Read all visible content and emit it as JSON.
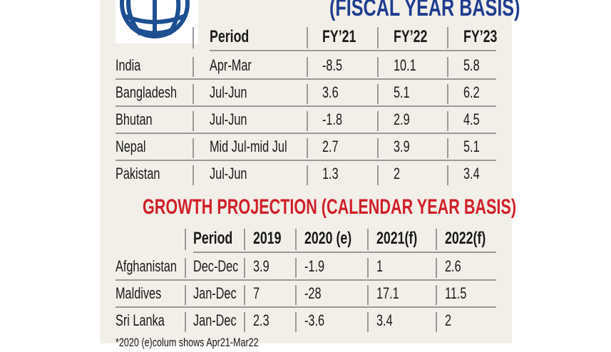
{
  "colors": {
    "fiscal_heading": "#1f3d8f",
    "calendar_heading": "#d0202a",
    "panel": "#f2efe9",
    "logo": "#1d4f91"
  },
  "logo": {
    "icon": "world-bank-globe-icon"
  },
  "fiscal": {
    "heading": "(FISCAL YEAR BASIS)",
    "headers": [
      "",
      "Period",
      "FY’21",
      "FY’22",
      "FY’23"
    ],
    "rows": [
      [
        "India",
        "Apr-Mar",
        "-8.5",
        "10.1",
        "5.8"
      ],
      [
        "Bangladesh",
        "Jul-Jun",
        "3.6",
        "5.1",
        "6.2"
      ],
      [
        "Bhutan",
        "Jul-Jun",
        "-1.8",
        "2.9",
        "4.5"
      ],
      [
        "Nepal",
        "Mid Jul-mid Jul",
        "2.7",
        "3.9",
        "5.1"
      ],
      [
        "Pakistan",
        "Jul-Jun",
        "1.3",
        "2",
        "3.4"
      ]
    ]
  },
  "calendar": {
    "heading": "GROWTH PROJECTION (CALENDAR YEAR BASIS)",
    "headers": [
      "",
      "Period",
      "2019",
      "2020 (e)",
      "2021(f)",
      "2022(f)"
    ],
    "rows": [
      [
        "Afghanistan",
        "Dec-Dec",
        "3.9",
        "-1.9",
        "1",
        "2.6"
      ],
      [
        "Maldives",
        "Jan-Dec",
        "7",
        "-28",
        "17.1",
        "11.5"
      ],
      [
        "Sri Lanka",
        "Jan-Dec",
        "2.3",
        "-3.6",
        "3.4",
        "2"
      ]
    ]
  },
  "footnote": "*2020 (e)colum shows Apr21-Mar22"
}
